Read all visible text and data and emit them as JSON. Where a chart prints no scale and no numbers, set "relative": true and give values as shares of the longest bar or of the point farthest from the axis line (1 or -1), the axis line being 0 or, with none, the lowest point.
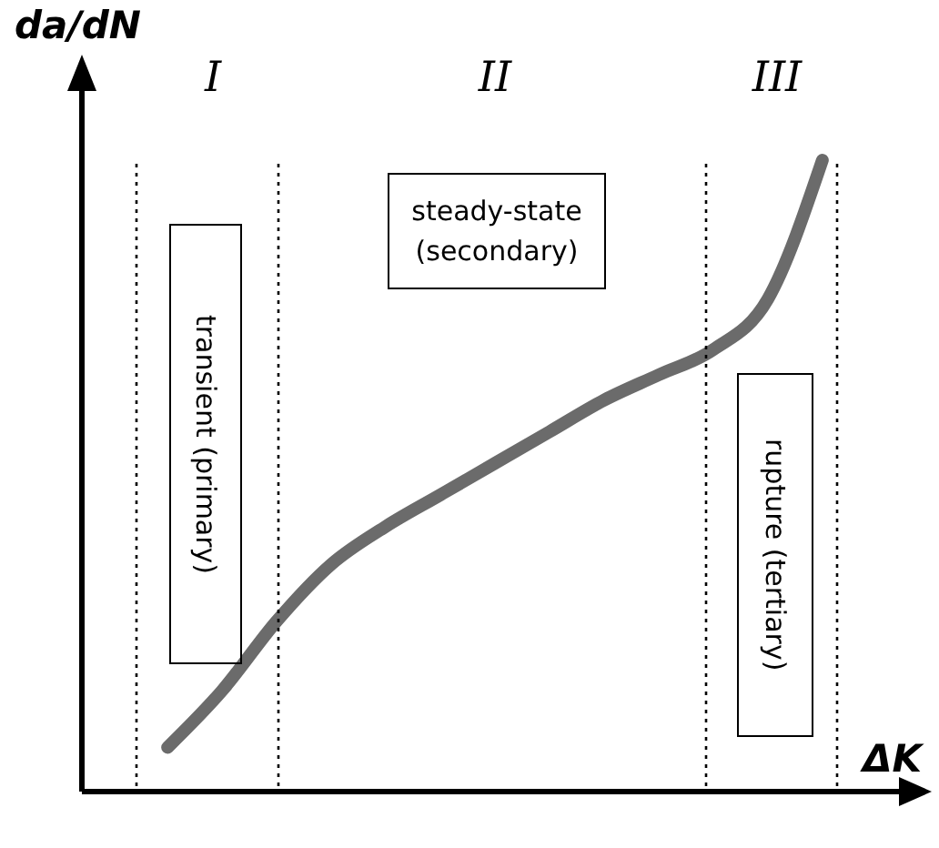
{
  "chart_data": {
    "type": "line",
    "relative": true,
    "xlabel": "ΔK",
    "ylabel": "da/dN",
    "categories": [
      null,
      null,
      null,
      null,
      null,
      null,
      null,
      null,
      null,
      null,
      null,
      null,
      null
    ],
    "series": [
      {
        "color": "#6b6b6b",
        "values": [
          0.07,
          0.16,
          0.27,
          0.36,
          0.42,
          0.47,
          0.52,
          0.57,
          0.62,
          0.66,
          0.7,
          0.78,
          1
        ]
      }
    ],
    "annotations": [
      "I",
      "II",
      "III",
      "transient (primary)",
      "steady-state (secondary)",
      "rupture (tertiary)"
    ],
    "marker": "none",
    "grid": false,
    "legend": false
  }
}
